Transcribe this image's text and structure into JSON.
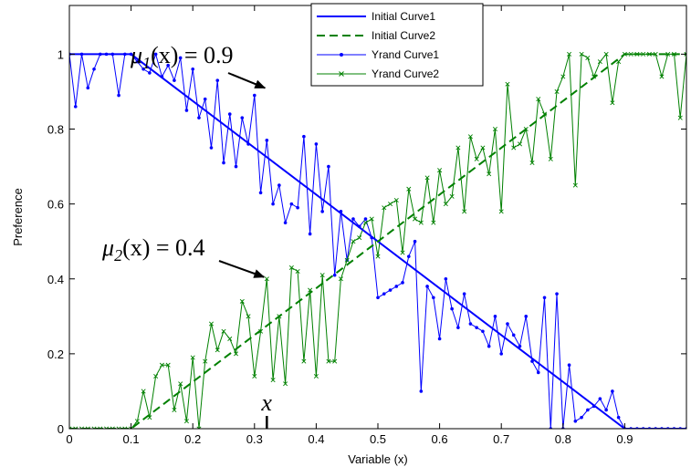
{
  "chart_data": {
    "type": "line",
    "xlabel": "Variable (x)",
    "ylabel": "Preference",
    "xlim": [
      0,
      1
    ],
    "ylim": [
      0,
      1.13
    ],
    "xticks": [
      0,
      0.1,
      0.2,
      0.3,
      0.4,
      0.5,
      0.6,
      0.7,
      0.8,
      0.9
    ],
    "xtick_labels": [
      "0",
      "0.1",
      "0.2",
      "0.3",
      "0.4",
      "0.5",
      "0.6",
      "0.7",
      "0.8",
      "0.9"
    ],
    "yticks": [
      0,
      0.2,
      0.4,
      0.6,
      0.8,
      1
    ],
    "ytick_labels": [
      "0",
      "0.2",
      "0.4",
      "0.6",
      "0.8",
      "1"
    ],
    "grid": false,
    "legend_position": "top-center",
    "series": [
      {
        "name": "Initial Curve1",
        "style": "solid",
        "color": "#0000ff",
        "marker": "none",
        "x": [
          0,
          0.1,
          0.9,
          1
        ],
        "y": [
          1,
          1,
          0,
          0
        ]
      },
      {
        "name": "Initial Curve2",
        "style": "dashed",
        "color": "#008000",
        "marker": "none",
        "x": [
          0,
          0.1,
          0.9,
          1
        ],
        "y": [
          0,
          0,
          1,
          1
        ]
      },
      {
        "name": "Yrand Curve1",
        "style": "solid",
        "color": "#0000ff",
        "marker": "point",
        "x": [
          0,
          0.01,
          0.02,
          0.03,
          0.04,
          0.05,
          0.06,
          0.07,
          0.08,
          0.09,
          0.1,
          0.11,
          0.12,
          0.13,
          0.14,
          0.15,
          0.16,
          0.17,
          0.18,
          0.19,
          0.2,
          0.21,
          0.22,
          0.23,
          0.24,
          0.25,
          0.26,
          0.27,
          0.28,
          0.29,
          0.3,
          0.31,
          0.32,
          0.33,
          0.34,
          0.35,
          0.36,
          0.37,
          0.38,
          0.39,
          0.4,
          0.41,
          0.42,
          0.43,
          0.44,
          0.45,
          0.46,
          0.47,
          0.48,
          0.49,
          0.5,
          0.51,
          0.52,
          0.53,
          0.54,
          0.55,
          0.56,
          0.57,
          0.58,
          0.59,
          0.6,
          0.61,
          0.62,
          0.63,
          0.64,
          0.65,
          0.66,
          0.67,
          0.68,
          0.69,
          0.7,
          0.71,
          0.72,
          0.73,
          0.74,
          0.75,
          0.76,
          0.77,
          0.78,
          0.79,
          0.8,
          0.81,
          0.82,
          0.83,
          0.84,
          0.85,
          0.86,
          0.87,
          0.88,
          0.89,
          0.9,
          0.91,
          0.92,
          0.93,
          0.94,
          0.95,
          0.96,
          0.97,
          0.98,
          0.99,
          1
        ],
        "y": [
          1,
          0.86,
          1,
          0.91,
          0.96,
          1,
          1,
          1,
          0.89,
          1,
          1,
          0.98,
          0.96,
          0.95,
          1,
          0.94,
          0.97,
          0.93,
          0.99,
          0.85,
          0.96,
          0.83,
          0.88,
          0.75,
          0.93,
          0.71,
          0.84,
          0.7,
          0.83,
          0.76,
          0.89,
          0.63,
          0.77,
          0.6,
          0.65,
          0.55,
          0.6,
          0.59,
          0.78,
          0.52,
          0.76,
          0.58,
          0.7,
          0.41,
          0.58,
          0.45,
          0.56,
          0.54,
          0.56,
          0.51,
          0.35,
          0.36,
          0.37,
          0.38,
          0.39,
          0.46,
          0.5,
          0.1,
          0.38,
          0.35,
          0.24,
          0.4,
          0.32,
          0.27,
          0.36,
          0.28,
          0.27,
          0.26,
          0.22,
          0.3,
          0.2,
          0.28,
          0.25,
          0.22,
          0.3,
          0.18,
          0.15,
          0.35,
          0,
          0.36,
          0,
          0.17,
          0.02,
          0.03,
          0.05,
          0.06,
          0.08,
          0.05,
          0.1,
          0.03,
          0,
          0,
          0,
          0,
          0,
          0,
          0,
          0,
          0,
          0,
          0
        ]
      },
      {
        "name": "Yrand Curve2",
        "style": "solid",
        "color": "#008000",
        "marker": "cross",
        "x": [
          0,
          0.01,
          0.02,
          0.03,
          0.04,
          0.05,
          0.06,
          0.07,
          0.08,
          0.09,
          0.1,
          0.11,
          0.12,
          0.13,
          0.14,
          0.15,
          0.16,
          0.17,
          0.18,
          0.19,
          0.2,
          0.21,
          0.22,
          0.23,
          0.24,
          0.25,
          0.26,
          0.27,
          0.28,
          0.29,
          0.3,
          0.31,
          0.32,
          0.33,
          0.34,
          0.35,
          0.36,
          0.37,
          0.38,
          0.39,
          0.4,
          0.41,
          0.42,
          0.43,
          0.44,
          0.45,
          0.46,
          0.47,
          0.48,
          0.49,
          0.5,
          0.51,
          0.52,
          0.53,
          0.54,
          0.55,
          0.56,
          0.57,
          0.58,
          0.59,
          0.6,
          0.61,
          0.62,
          0.63,
          0.64,
          0.65,
          0.66,
          0.67,
          0.68,
          0.69,
          0.7,
          0.71,
          0.72,
          0.73,
          0.74,
          0.75,
          0.76,
          0.77,
          0.78,
          0.79,
          0.8,
          0.81,
          0.82,
          0.83,
          0.84,
          0.85,
          0.86,
          0.87,
          0.88,
          0.89,
          0.9,
          0.91,
          0.92,
          0.93,
          0.94,
          0.95,
          0.96,
          0.97,
          0.98,
          0.99,
          1
        ],
        "y": [
          0,
          0,
          0,
          0,
          0,
          0,
          0,
          0,
          0,
          0,
          0,
          0.02,
          0.1,
          0.03,
          0.14,
          0.17,
          0.17,
          0.05,
          0.12,
          0.02,
          0.19,
          0,
          0.18,
          0.28,
          0.21,
          0.26,
          0.24,
          0.2,
          0.34,
          0.3,
          0.14,
          0.26,
          0.4,
          0.13,
          0.3,
          0.12,
          0.43,
          0.42,
          0.18,
          0.37,
          0.14,
          0.41,
          0.18,
          0.18,
          0.4,
          0.45,
          0.5,
          0.51,
          0.55,
          0.56,
          0.46,
          0.59,
          0.6,
          0.61,
          0.47,
          0.64,
          0.56,
          0.55,
          0.67,
          0.55,
          0.69,
          0.6,
          0.62,
          0.75,
          0.58,
          0.78,
          0.72,
          0.75,
          0.68,
          0.8,
          0.58,
          0.92,
          0.75,
          0.76,
          0.8,
          0.71,
          0.88,
          0.84,
          0.72,
          0.9,
          0.94,
          1,
          0.65,
          1,
          0.99,
          0.94,
          0.98,
          1,
          0.87,
          0.98,
          1,
          1,
          1,
          1,
          1,
          1,
          0.94,
          1,
          1,
          0.83,
          1
        ]
      }
    ],
    "annotations": [
      {
        "text": "μ1(x) = 0.9",
        "target_x": 0.32,
        "target_y": 0.9
      },
      {
        "text": "μ2(x) = 0.4",
        "target_x": 0.32,
        "target_y": 0.4
      },
      {
        "text": "x",
        "target_x": 0.32,
        "target_y": 0
      }
    ]
  }
}
